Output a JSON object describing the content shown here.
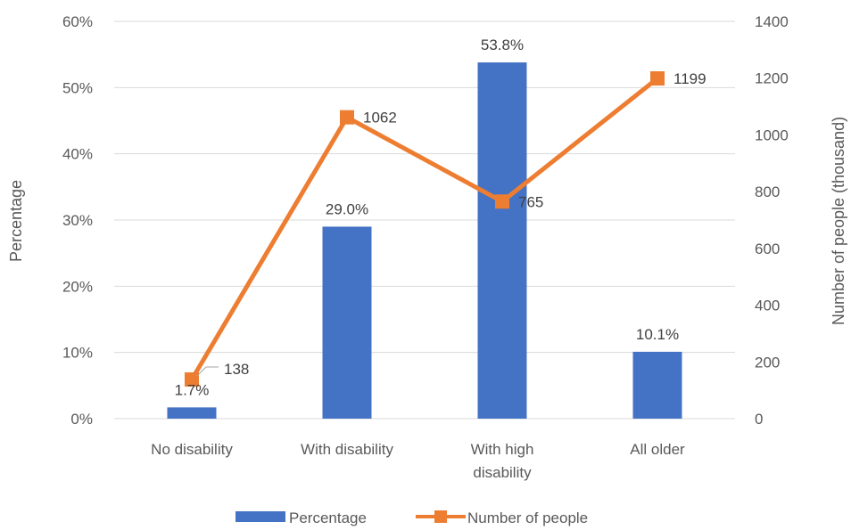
{
  "chart_data": {
    "type": "bar",
    "categories": [
      [
        "No disability"
      ],
      [
        "With disability"
      ],
      [
        "With high",
        "disability"
      ],
      [
        "All older"
      ]
    ],
    "series": [
      {
        "name": "Percentage",
        "type": "bar",
        "axis": "left",
        "values": [
          1.7,
          29.0,
          53.8,
          10.1
        ],
        "labels": [
          "1.7%",
          "29.0%",
          "53.8%",
          "10.1%"
        ],
        "color": "#4472C4"
      },
      {
        "name": "Number of people",
        "type": "line",
        "axis": "right",
        "values": [
          138,
          1062,
          765,
          1199
        ],
        "labels": [
          "138",
          "1062",
          "765",
          "1199"
        ],
        "color": "#ED7D31"
      }
    ],
    "ylabel": "Percentage",
    "ylabel_right": "Number of people (thousand)",
    "ylim": [
      0,
      60
    ],
    "ylim_right": [
      0,
      1400
    ],
    "yticks": [
      "0%",
      "10%",
      "20%",
      "30%",
      "40%",
      "50%",
      "60%"
    ],
    "yticks_right": [
      "0",
      "200",
      "400",
      "600",
      "800",
      "1000",
      "1200",
      "1400"
    ],
    "grid": true,
    "legend_position": "bottom"
  }
}
